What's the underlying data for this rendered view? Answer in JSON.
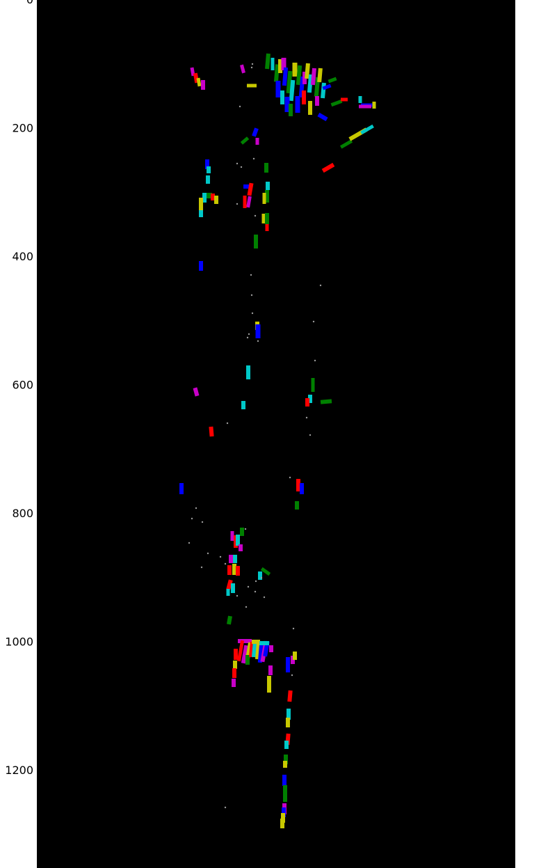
{
  "chart_data": {
    "type": "scatter",
    "title": "",
    "xlabel": "",
    "ylabel": "",
    "ylim": [
      0,
      1350
    ],
    "y_axis_inverted": true,
    "y_ticks": [
      {
        "value": 0,
        "label": "0"
      },
      {
        "value": 200,
        "label": "200"
      },
      {
        "value": 400,
        "label": "400"
      },
      {
        "value": 600,
        "label": "600"
      },
      {
        "value": 800,
        "label": "800"
      },
      {
        "value": 1000,
        "label": "1000"
      },
      {
        "value": 1200,
        "label": "1200"
      }
    ],
    "background_color": "#000000",
    "box_colors": [
      "#ff0000",
      "#008000",
      "#0000ff",
      "#00c8c8",
      "#c800c8",
      "#c8c800"
    ],
    "grid": false,
    "legend": "none"
  }
}
